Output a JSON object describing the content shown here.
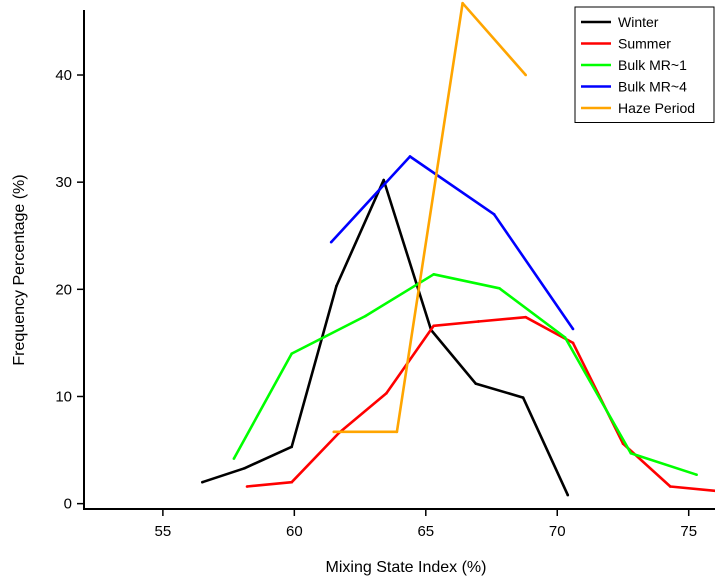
{
  "chart_data": {
    "type": "line",
    "xlabel": "Mixing State Index (%)",
    "ylabel": "Frequency Percentage (%)",
    "xlim": [
      52,
      76
    ],
    "ylim": [
      -0.5,
      47
    ],
    "x_ticks": [
      55,
      60,
      65,
      70,
      75
    ],
    "y_ticks": [
      0,
      10,
      20,
      30,
      40
    ],
    "x_tick_labels": [
      "55",
      "60",
      "65",
      "70",
      "75"
    ],
    "y_tick_labels": [
      "0",
      "10",
      "20",
      "30",
      "40"
    ],
    "grid": false,
    "legend_position": "top-right",
    "series": [
      {
        "name": "Winter",
        "color": "#000000",
        "x": [
          56.5,
          58.1,
          59.9,
          61.6,
          63.4,
          65.2,
          66.9,
          68.7,
          70.4
        ],
        "y": [
          2.0,
          3.3,
          5.3,
          20.3,
          30.2,
          16.2,
          11.2,
          9.9,
          0.8
        ]
      },
      {
        "name": "Summer",
        "color": "#ff0000",
        "x": [
          58.2,
          59.9,
          61.7,
          63.5,
          65.3,
          67.0,
          68.8,
          70.6,
          72.5,
          74.3,
          76.0
        ],
        "y": [
          1.6,
          2.0,
          6.6,
          10.3,
          16.6,
          17.0,
          17.4,
          15.0,
          5.6,
          1.6,
          1.2
        ]
      },
      {
        "name": "Bulk MR~1",
        "color": "#00ff00",
        "x": [
          57.7,
          59.9,
          62.7,
          65.3,
          67.8,
          70.3,
          72.8,
          75.3
        ],
        "y": [
          4.2,
          14.0,
          17.5,
          21.4,
          20.1,
          15.5,
          4.7,
          2.7
        ]
      },
      {
        "name": "Bulk MR~4",
        "color": "#0000ff",
        "x": [
          61.4,
          64.4,
          67.6,
          70.6
        ],
        "y": [
          24.4,
          32.4,
          27.0,
          16.3
        ]
      },
      {
        "name": "Haze Period",
        "color": "#ffa500",
        "x": [
          61.5,
          63.9,
          66.4,
          68.8
        ],
        "y": [
          6.7,
          6.7,
          46.7,
          40.0
        ]
      }
    ]
  }
}
